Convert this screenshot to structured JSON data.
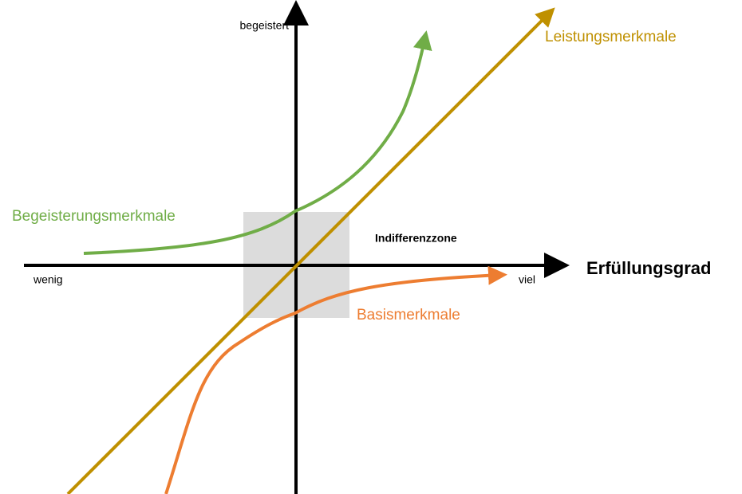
{
  "axes": {
    "y_top": "begeistert",
    "x_left": "wenig",
    "x_right": "viel",
    "x_title": "Erfüllungsgrad"
  },
  "zone": {
    "label": "Indifferenzzone"
  },
  "curves": [
    {
      "label": "Leistungsmerkmale"
    },
    {
      "label": "Begeisterungsmerkmale"
    },
    {
      "label": "Basismerkmale"
    }
  ]
}
